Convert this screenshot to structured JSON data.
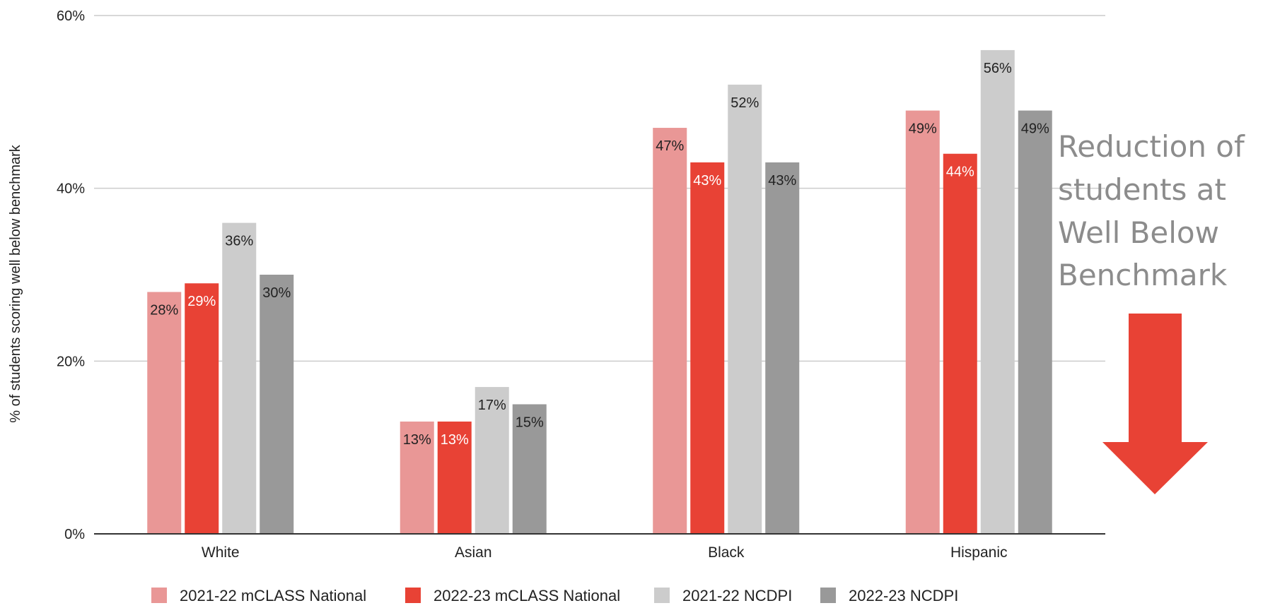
{
  "chart_data": {
    "type": "bar",
    "title": "",
    "xlabel": "",
    "ylabel": "% of students scoring well below benchmark",
    "ylim": [
      0,
      60
    ],
    "yticks": [
      "0%",
      "20%",
      "40%",
      "60%"
    ],
    "grid": true,
    "legend_position": "bottom",
    "categories": [
      "White",
      "Asian",
      "Black",
      "Hispanic"
    ],
    "series": [
      {
        "name": "2021-22 mCLASS National",
        "color": "#e99796",
        "label_color": "#222222",
        "values": [
          28,
          13,
          47,
          49
        ],
        "labels": [
          "28%",
          "13%",
          "47%",
          "49%"
        ]
      },
      {
        "name": "2022-23 mCLASS National",
        "color": "#e84235",
        "label_color": "#ffffff",
        "values": [
          29,
          13,
          43,
          44
        ],
        "labels": [
          "29%",
          "13%",
          "43%",
          "44%"
        ]
      },
      {
        "name": "2021-22 NCDPI",
        "color": "#cccccc",
        "label_color": "#222222",
        "values": [
          36,
          17,
          52,
          56
        ],
        "labels": [
          "36%",
          "17%",
          "52%",
          "56%"
        ]
      },
      {
        "name": "2022-23 NCDPI",
        "color": "#999999",
        "label_color": "#222222",
        "values": [
          30,
          15,
          43,
          49
        ],
        "labels": [
          "30%",
          "15%",
          "43%",
          "49%"
        ]
      }
    ]
  },
  "callout": {
    "lines": [
      "Reduction of",
      "students at",
      "Well Below",
      "Benchmark"
    ],
    "arrow_icon": "down-arrow-icon",
    "arrow_color": "#e84235"
  }
}
